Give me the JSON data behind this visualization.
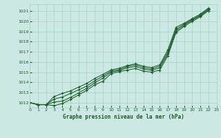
{
  "title": "Graphe pression niveau de la mer (hPa)",
  "xlim": [
    0,
    23
  ],
  "ylim": [
    1011.5,
    1021.7
  ],
  "xticks": [
    0,
    1,
    2,
    3,
    4,
    5,
    6,
    7,
    8,
    9,
    10,
    11,
    12,
    13,
    14,
    15,
    16,
    17,
    18,
    19,
    20,
    21,
    22,
    23
  ],
  "yticks": [
    1012,
    1013,
    1014,
    1015,
    1016,
    1017,
    1018,
    1019,
    1020,
    1021
  ],
  "bg_color": "#cce8e2",
  "grid_color": "#a8d0c8",
  "line_color": "#1a5c2a",
  "x_hours": [
    0,
    1,
    2,
    3,
    4,
    5,
    6,
    7,
    8,
    9,
    10,
    11,
    12,
    13,
    14,
    15,
    16,
    17,
    18,
    19,
    20,
    21,
    22
  ],
  "series1": [
    1012.0,
    1011.8,
    1011.8,
    1011.7,
    1011.9,
    1012.3,
    1012.75,
    1013.2,
    1013.75,
    1014.1,
    1014.85,
    1015.05,
    1015.2,
    1015.35,
    1015.1,
    1015.0,
    1015.2,
    1016.6,
    1018.9,
    1019.5,
    1020.0,
    1020.45,
    1021.05
  ],
  "series2": [
    1012.0,
    1011.8,
    1011.8,
    1012.05,
    1012.15,
    1012.5,
    1012.95,
    1013.4,
    1013.95,
    1014.4,
    1015.0,
    1015.15,
    1015.42,
    1015.55,
    1015.3,
    1015.18,
    1015.42,
    1016.8,
    1019.05,
    1019.62,
    1020.12,
    1020.55,
    1021.15
  ],
  "series3": [
    1012.0,
    1011.8,
    1011.8,
    1012.35,
    1012.55,
    1012.9,
    1013.25,
    1013.62,
    1014.15,
    1014.6,
    1015.1,
    1015.25,
    1015.55,
    1015.7,
    1015.45,
    1015.3,
    1015.58,
    1016.98,
    1019.22,
    1019.72,
    1020.18,
    1020.62,
    1021.22
  ],
  "series4": [
    1012.0,
    1011.8,
    1011.8,
    1012.6,
    1012.9,
    1013.15,
    1013.52,
    1013.88,
    1014.38,
    1014.78,
    1015.22,
    1015.38,
    1015.65,
    1015.82,
    1015.58,
    1015.45,
    1015.72,
    1017.2,
    1019.42,
    1019.82,
    1020.28,
    1020.72,
    1021.32
  ]
}
